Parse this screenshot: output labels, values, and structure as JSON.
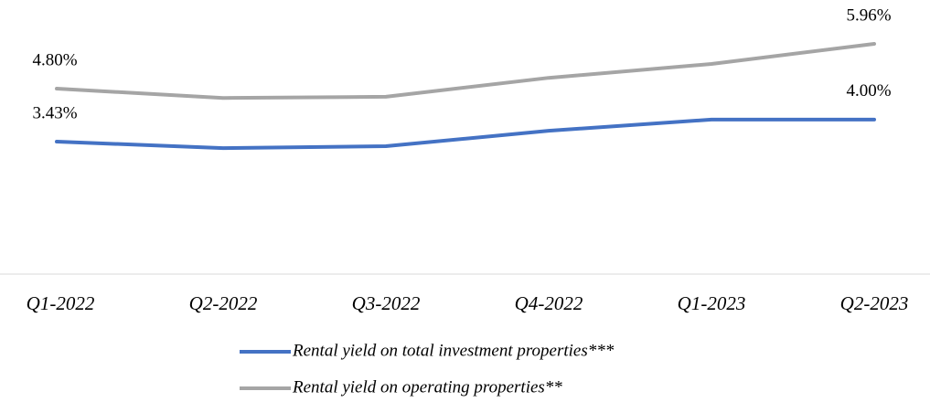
{
  "chart_data": {
    "type": "line",
    "categories": [
      "Q1-2022",
      "Q2-2022",
      "Q3-2022",
      "Q4-2022",
      "Q1-2023",
      "Q2-2023"
    ],
    "series": [
      {
        "name": "Rental yield on total investment properties***",
        "color": "#4472c4",
        "values": [
          3.43,
          3.26,
          3.31,
          3.71,
          4.0,
          4.0
        ],
        "value_labels": [
          "3.43%",
          null,
          null,
          null,
          null,
          "4.00%"
        ]
      },
      {
        "name": "Rental yield on operating properties**",
        "color": "#a5a5a5",
        "values": [
          4.8,
          4.56,
          4.59,
          5.08,
          5.44,
          5.96
        ],
        "value_labels": [
          "4.80%",
          null,
          null,
          null,
          null,
          "5.96%"
        ]
      }
    ],
    "ylim": [
      0,
      7
    ]
  }
}
